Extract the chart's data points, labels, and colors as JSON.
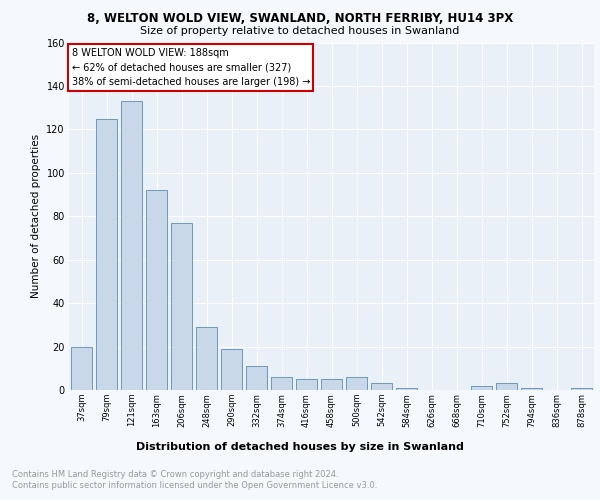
{
  "title1": "8, WELTON WOLD VIEW, SWANLAND, NORTH FERRIBY, HU14 3PX",
  "title2": "Size of property relative to detached houses in Swanland",
  "xlabel": "Distribution of detached houses by size in Swanland",
  "ylabel": "Number of detached properties",
  "categories": [
    "37sqm",
    "79sqm",
    "121sqm",
    "163sqm",
    "206sqm",
    "248sqm",
    "290sqm",
    "332sqm",
    "374sqm",
    "416sqm",
    "458sqm",
    "500sqm",
    "542sqm",
    "584sqm",
    "626sqm",
    "668sqm",
    "710sqm",
    "752sqm",
    "794sqm",
    "836sqm",
    "878sqm"
  ],
  "values": [
    20,
    125,
    133,
    92,
    77,
    29,
    19,
    11,
    6,
    5,
    5,
    6,
    3,
    1,
    0,
    0,
    2,
    3,
    1,
    0,
    1
  ],
  "bar_color": "#c8d8e8",
  "bar_edge_color": "#5b8db8",
  "annotation_lines": [
    "8 WELTON WOLD VIEW: 188sqm",
    "← 62% of detached houses are smaller (327)",
    "38% of semi-detached houses are larger (198) →"
  ],
  "footer_line1": "Contains HM Land Registry data © Crown copyright and database right 2024.",
  "footer_line2": "Contains public sector information licensed under the Open Government Licence v3.0.",
  "ylim": [
    0,
    160
  ],
  "yticks": [
    0,
    20,
    40,
    60,
    80,
    100,
    120,
    140,
    160
  ],
  "background_color": "#eaf0f8",
  "grid_color": "#ffffff",
  "annotation_box_color": "#ffffff",
  "annotation_box_edge": "#cc0000",
  "fig_bg": "#f5f8fc"
}
